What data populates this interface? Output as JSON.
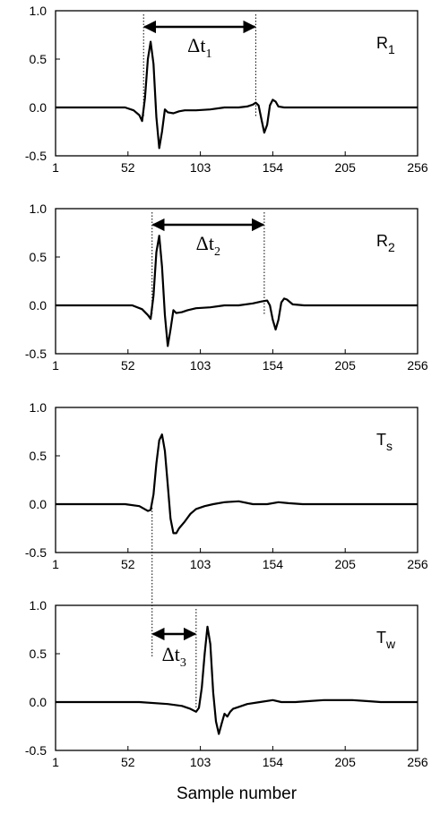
{
  "chart_data": [
    {
      "type": "line",
      "label": "R",
      "label_sub": "1",
      "xlim": [
        1,
        256
      ],
      "ylim": [
        -0.5,
        1.0
      ],
      "xticks": [
        1,
        52,
        103,
        154,
        205,
        256
      ],
      "xtick_labels": [
        "1",
        "52",
        "103",
        "154",
        "205",
        "256"
      ],
      "yticks": [
        1.0,
        0.5,
        0.0,
        -0.5
      ],
      "ytick_labels": [
        "1.0",
        "0.5",
        "0.0",
        "-0.5"
      ],
      "grid": false,
      "annotation": {
        "text": "Δt",
        "sub": "1",
        "from": 63,
        "to": 142
      },
      "series": [
        {
          "x": [
            1,
            50,
            56,
            60,
            62,
            64,
            66,
            68,
            70,
            72,
            74,
            76,
            78,
            80,
            84,
            88,
            92,
            100,
            110,
            120,
            130,
            136,
            140,
            142,
            144,
            146,
            148,
            150,
            152,
            154,
            156,
            158,
            162,
            170,
            190,
            230,
            256
          ],
          "y": [
            0,
            0,
            -0.03,
            -0.08,
            -0.14,
            0.1,
            0.5,
            0.68,
            0.45,
            -0.1,
            -0.42,
            -0.25,
            -0.02,
            -0.05,
            -0.06,
            -0.04,
            -0.03,
            -0.03,
            -0.02,
            0.0,
            0.0,
            0.01,
            0.03,
            0.05,
            0.02,
            -0.12,
            -0.26,
            -0.18,
            0.02,
            0.08,
            0.06,
            0.01,
            0.0,
            0.0,
            0.0,
            0.0,
            0.0
          ]
        }
      ]
    },
    {
      "type": "line",
      "label": "R",
      "label_sub": "2",
      "xlim": [
        1,
        256
      ],
      "ylim": [
        -0.5,
        1.0
      ],
      "xticks": [
        1,
        52,
        103,
        154,
        205,
        256
      ],
      "xtick_labels": [
        "1",
        "52",
        "103",
        "154",
        "205",
        "256"
      ],
      "yticks": [
        1.0,
        0.5,
        0.0,
        -0.5
      ],
      "ytick_labels": [
        "1.0",
        "0.5",
        "0.0",
        "-0.5"
      ],
      "grid": false,
      "annotation": {
        "text": "Δt",
        "sub": "2",
        "from": 69,
        "to": 148
      },
      "series": [
        {
          "x": [
            1,
            55,
            62,
            66,
            68,
            70,
            72,
            74,
            76,
            78,
            80,
            82,
            84,
            86,
            90,
            94,
            100,
            110,
            120,
            130,
            140,
            146,
            150,
            152,
            154,
            156,
            158,
            160,
            162,
            164,
            168,
            176,
            200,
            256
          ],
          "y": [
            0,
            0,
            -0.04,
            -0.1,
            -0.14,
            0.1,
            0.55,
            0.72,
            0.4,
            -0.1,
            -0.42,
            -0.25,
            -0.05,
            -0.08,
            -0.07,
            -0.05,
            -0.03,
            -0.02,
            0.0,
            0.0,
            0.02,
            0.04,
            0.05,
            0.0,
            -0.15,
            -0.25,
            -0.15,
            0.03,
            0.07,
            0.06,
            0.01,
            0.0,
            0.0,
            0.0
          ]
        }
      ]
    },
    {
      "type": "line",
      "label": "T",
      "label_sub": "s",
      "xlim": [
        1,
        256
      ],
      "ylim": [
        -0.5,
        1.0
      ],
      "xticks": [
        1,
        52,
        103,
        154,
        205,
        256
      ],
      "xtick_labels": [
        "1",
        "52",
        "103",
        "154",
        "205",
        "256"
      ],
      "yticks": [
        1.0,
        0.5,
        0.0,
        -0.5
      ],
      "ytick_labels": [
        "1.0",
        "0.5",
        "0.0",
        "-0.5"
      ],
      "grid": false,
      "series": [
        {
          "x": [
            1,
            50,
            60,
            66,
            68,
            70,
            72,
            74,
            76,
            78,
            80,
            82,
            84,
            86,
            88,
            92,
            96,
            100,
            106,
            112,
            120,
            130,
            140,
            150,
            158,
            165,
            175,
            200,
            256
          ],
          "y": [
            0,
            0,
            -0.02,
            -0.07,
            -0.06,
            0.1,
            0.42,
            0.66,
            0.72,
            0.55,
            0.2,
            -0.15,
            -0.3,
            -0.3,
            -0.25,
            -0.18,
            -0.1,
            -0.05,
            -0.02,
            0.0,
            0.02,
            0.03,
            0.0,
            0.0,
            0.02,
            0.01,
            0.0,
            0.0,
            0.0
          ]
        }
      ]
    },
    {
      "type": "line",
      "label": "T",
      "label_sub": "w",
      "xlim": [
        1,
        256
      ],
      "ylim": [
        -0.5,
        1.0
      ],
      "xticks": [
        1,
        52,
        103,
        154,
        205,
        256
      ],
      "xtick_labels": [
        "1",
        "52",
        "103",
        "154",
        "205",
        "256"
      ],
      "yticks": [
        1.0,
        0.5,
        0.0,
        -0.5
      ],
      "ytick_labels": [
        "1.0",
        "0.5",
        "0.0",
        "-0.5"
      ],
      "grid": false,
      "xlabel": "Sample number",
      "annotation": {
        "text": "Δt",
        "sub": "3",
        "from": 69,
        "to": 100
      },
      "series": [
        {
          "x": [
            1,
            60,
            80,
            90,
            96,
            100,
            102,
            104,
            106,
            108,
            110,
            112,
            114,
            116,
            118,
            120,
            122,
            124,
            126,
            130,
            136,
            145,
            154,
            160,
            170,
            180,
            190,
            200,
            210,
            220,
            230,
            256
          ],
          "y": [
            0,
            0,
            -0.02,
            -0.04,
            -0.07,
            -0.1,
            -0.06,
            0.15,
            0.5,
            0.78,
            0.6,
            0.1,
            -0.2,
            -0.33,
            -0.22,
            -0.12,
            -0.15,
            -0.1,
            -0.07,
            -0.05,
            -0.02,
            0.0,
            0.02,
            0.0,
            0.0,
            0.01,
            0.02,
            0.02,
            0.02,
            0.01,
            0.0,
            0.0
          ]
        }
      ]
    }
  ]
}
